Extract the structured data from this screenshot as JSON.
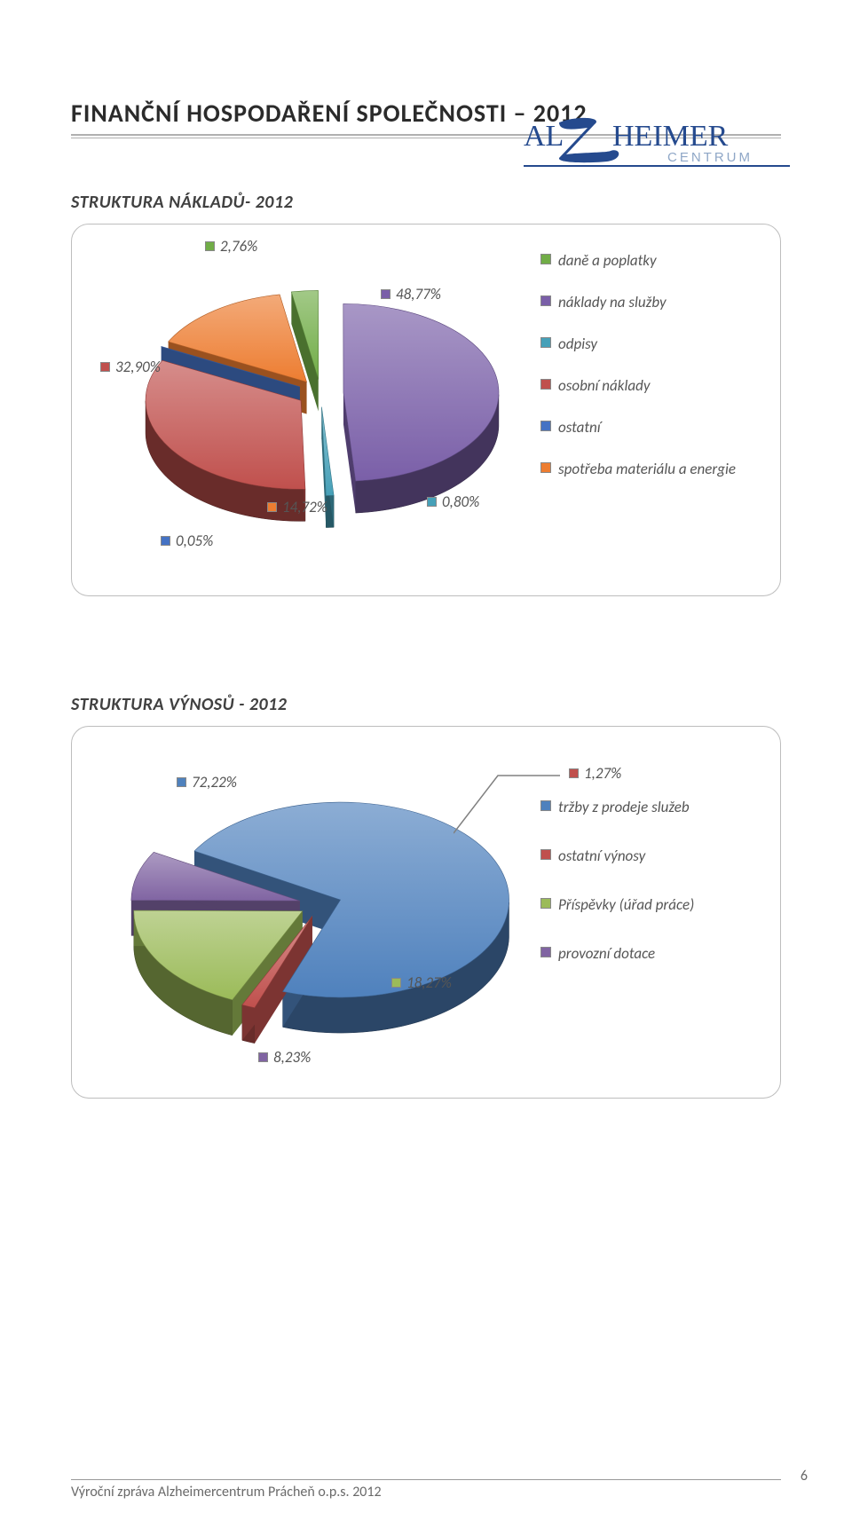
{
  "logo": {
    "word1": "AL",
    "word2": "HEIMER",
    "subtitle": "CENTRUM",
    "main_color": "#254a8e",
    "sub_color": "#8fa7c7"
  },
  "heading": "FINANČNÍ HOSPODAŘENÍ SPOLEČNOSTI – 2012",
  "costs": {
    "title": "STRUKTURA NÁKLADŮ- 2012",
    "type": "pie",
    "background_color": "#ffffff",
    "border_color": "#bdbdbd",
    "label_fontsize": 17,
    "title_fontsize": 20,
    "slices": [
      {
        "key": "dane",
        "label": "daně a poplatky",
        "value": 2.76,
        "value_label": "2,76%",
        "color": "#71ad47"
      },
      {
        "key": "sluzby",
        "label": "náklady na služby",
        "value": 48.77,
        "value_label": "48,77%",
        "color": "#7a5fa8"
      },
      {
        "key": "odpisy",
        "label": "odpisy",
        "value": 0.8,
        "value_label": "0,80%",
        "color": "#46a0b8"
      },
      {
        "key": "osobni",
        "label": "osobní náklady",
        "value": 32.9,
        "value_label": "32,90%",
        "color": "#c0504d"
      },
      {
        "key": "ostatni",
        "label": "ostatní",
        "value": 0.05,
        "value_label": "0,05%",
        "color": "#4472c4"
      },
      {
        "key": "material",
        "label": "spotřeba materiálu a energie",
        "value": 14.72,
        "value_label": "14,72%",
        "color": "#ed7d31"
      }
    ]
  },
  "revenues": {
    "title": "STRUKTURA VÝNOSŮ - 2012",
    "type": "pie",
    "background_color": "#ffffff",
    "border_color": "#bdbdbd",
    "label_fontsize": 17,
    "title_fontsize": 20,
    "slices": [
      {
        "key": "trzby",
        "label": "tržby z prodeje služeb",
        "value": 72.22,
        "value_label": "72,22%",
        "color": "#4f81bd"
      },
      {
        "key": "ost_vynosy",
        "label": "ostatní výnosy",
        "value": 1.27,
        "value_label": "1,27%",
        "color": "#c0504d"
      },
      {
        "key": "prispevky",
        "label": "Příspěvky (úřad práce)",
        "value": 18.27,
        "value_label": "18,27%",
        "color": "#9bbb59"
      },
      {
        "key": "dotace",
        "label": "provozní dotace",
        "value": 8.23,
        "value_label": "8,23%",
        "color": "#8064a2"
      }
    ]
  },
  "footer": {
    "text": "Výroční zpráva Alzheimercentrum Prácheň o.p.s. 2012",
    "page": "6"
  }
}
